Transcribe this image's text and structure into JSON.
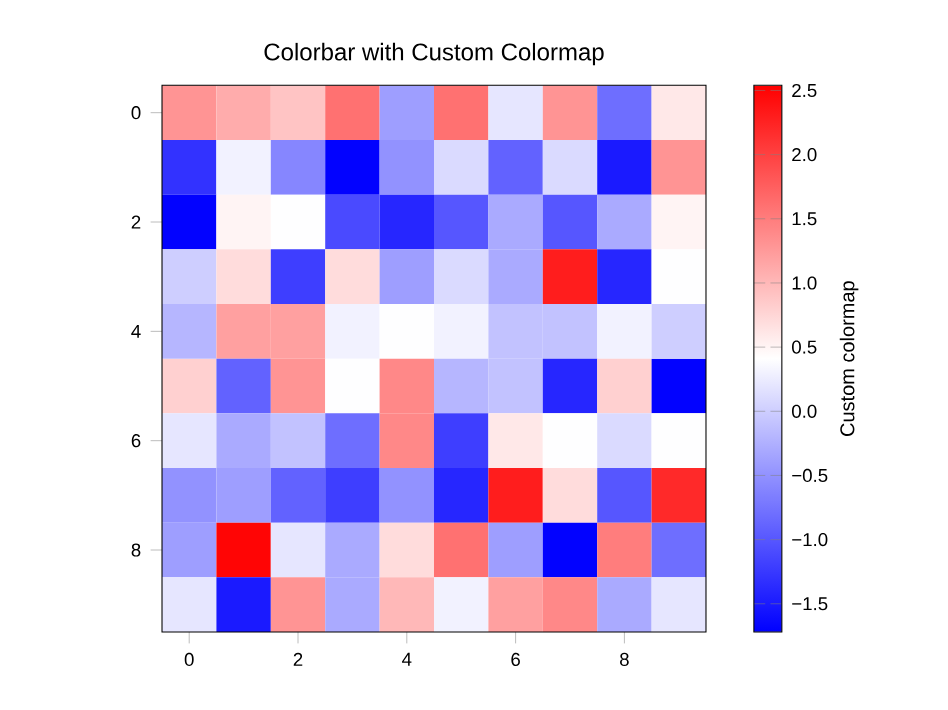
{
  "chart_data": {
    "type": "heatmap",
    "title": "Colorbar with Custom Colormap",
    "clabel": "Custom colormap",
    "categories": [
      "0",
      null,
      "2",
      null,
      "4",
      null,
      "6",
      null,
      "8",
      null
    ],
    "y_categories": [
      "0",
      null,
      "2",
      null,
      "4",
      null,
      "6",
      null,
      "8",
      null
    ],
    "colors": [
      "#0000ff",
      "#ffffff",
      "#ff0000"
    ],
    "clim": [
      -1.72,
      2.54
    ],
    "cticks": [
      {
        "value": -1.5,
        "label": "−1.5"
      },
      {
        "value": -1.0,
        "label": "−1.0"
      },
      {
        "value": -0.5,
        "label": "−0.5"
      },
      {
        "value": 0.0,
        "label": "0.0"
      },
      {
        "value": 0.5,
        "label": "0.5"
      },
      {
        "value": 1.0,
        "label": "1.0"
      },
      {
        "value": 1.5,
        "label": "1.5"
      },
      {
        "value": 2.0,
        "label": "2.0"
      },
      {
        "value": 2.5,
        "label": "2.5"
      }
    ],
    "cells": [
      [
        1.3,
        1.1,
        0.9,
        1.6,
        -0.4,
        1.6,
        0.2,
        1.3,
        -0.8,
        0.6
      ],
      [
        -1.3,
        0.3,
        -0.6,
        -1.7,
        -0.5,
        0.1,
        -0.9,
        0.1,
        -1.5,
        1.3
      ],
      [
        -1.7,
        0.5,
        0.4,
        -1.1,
        -1.4,
        -1.0,
        -0.3,
        -1.0,
        -0.3,
        0.5
      ],
      [
        0.0,
        0.7,
        -1.2,
        0.7,
        -0.4,
        0.1,
        -0.3,
        2.3,
        -1.4,
        0.4
      ],
      [
        -0.2,
        1.2,
        1.2,
        0.3,
        0.4,
        0.3,
        -0.1,
        -0.1,
        0.3,
        0.0
      ],
      [
        0.8,
        -0.9,
        1.3,
        0.4,
        1.4,
        -0.2,
        -0.1,
        -1.4,
        0.8,
        -1.7
      ],
      [
        0.2,
        -0.3,
        -0.1,
        -0.8,
        1.4,
        -1.2,
        0.6,
        0.4,
        0.1,
        0.4
      ],
      [
        -0.5,
        -0.4,
        -0.9,
        -1.2,
        -0.5,
        -1.4,
        2.3,
        0.7,
        -1.0,
        2.2
      ],
      [
        -0.4,
        2.5,
        0.2,
        -0.3,
        0.7,
        1.6,
        -0.4,
        -1.7,
        1.5,
        -0.8
      ],
      [
        0.2,
        -1.5,
        1.3,
        -0.3,
        1.0,
        0.3,
        1.2,
        1.4,
        -0.3,
        0.2
      ]
    ]
  }
}
